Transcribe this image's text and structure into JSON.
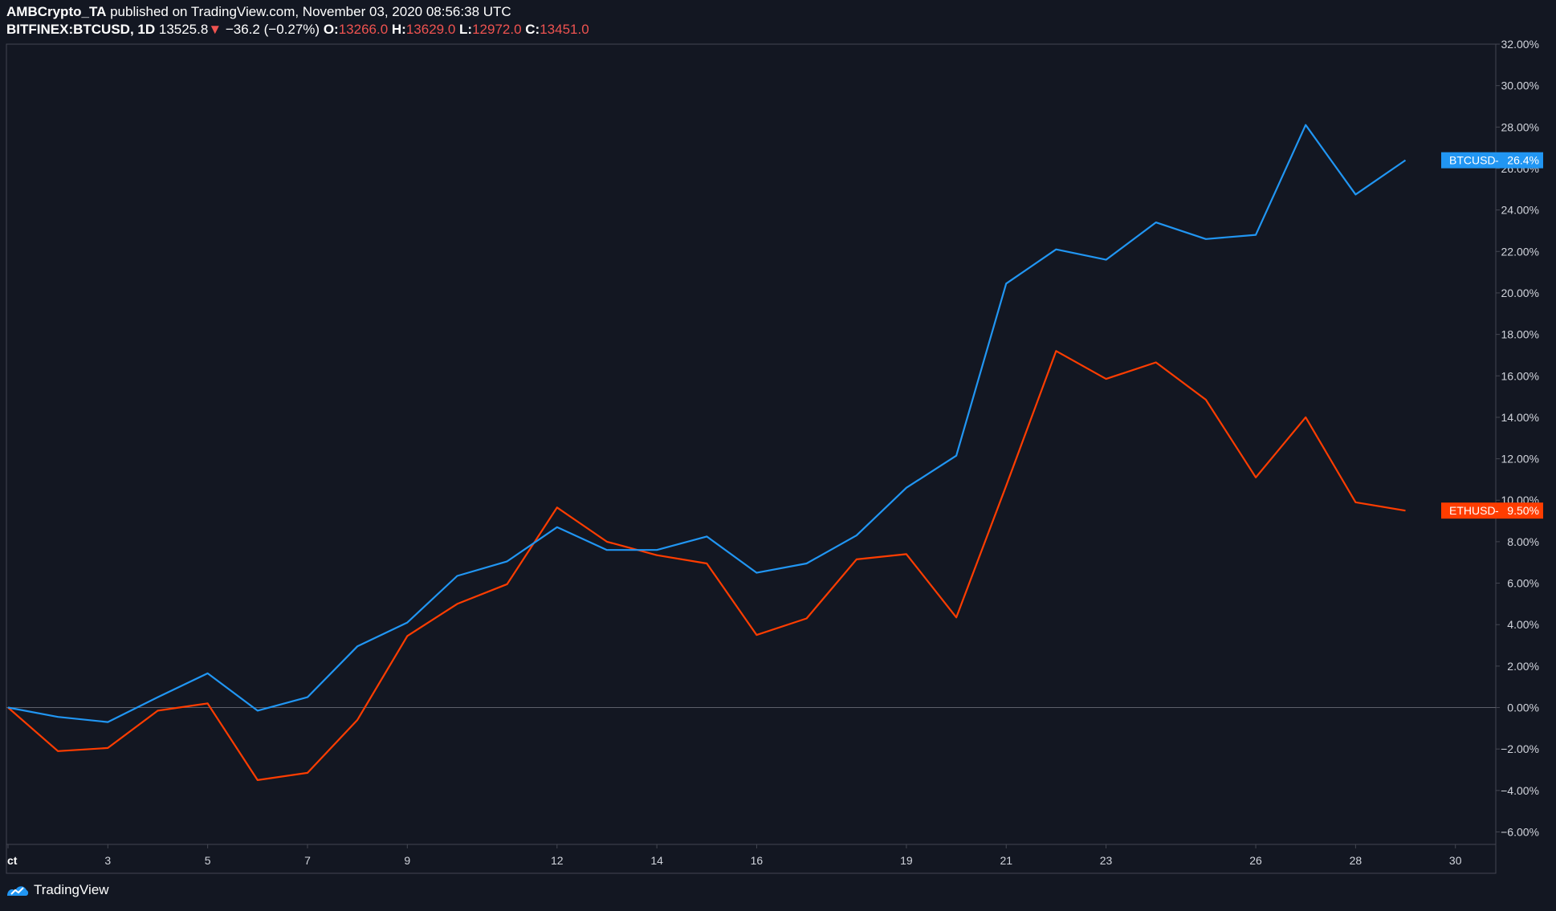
{
  "header": {
    "author": "AMBCrypto_TA",
    "published_text": " published on TradingView.com, November 03, 2020 08:56:38 UTC",
    "symbol": "BITFINEX:BTCUSD, 1D",
    "price": "13525.8",
    "change_arrow": "▼",
    "change": "−36.2 (−0.27%)",
    "open_label": "O:",
    "open": "13266.0",
    "high_label": "H:",
    "high": "13629.0",
    "low_label": "L:",
    "low": "12972.0",
    "close_label": "C:",
    "close": "13451.0"
  },
  "footer": {
    "brand": "TradingView",
    "logo_icon": "tradingview-logo-icon"
  },
  "colors": {
    "background": "#131722",
    "btc": "#2196f3",
    "eth": "#ff3d00",
    "grid": "#363a45",
    "axis_text": "#d1d4dc"
  },
  "chart_data": {
    "type": "line",
    "title": "",
    "xlabel": "",
    "ylabel": "",
    "x_range": [
      1,
      30.6
    ],
    "ylim": [
      -6.6,
      32.0
    ],
    "x_ticks": [
      {
        "x": 1,
        "label": "ct"
      },
      {
        "x": 3,
        "label": "3"
      },
      {
        "x": 5,
        "label": "5"
      },
      {
        "x": 7,
        "label": "7"
      },
      {
        "x": 9,
        "label": "9"
      },
      {
        "x": 12,
        "label": "12"
      },
      {
        "x": 14,
        "label": "14"
      },
      {
        "x": 16,
        "label": "16"
      },
      {
        "x": 19,
        "label": "19"
      },
      {
        "x": 21,
        "label": "21"
      },
      {
        "x": 23,
        "label": "23"
      },
      {
        "x": 26,
        "label": "26"
      },
      {
        "x": 28,
        "label": "28"
      },
      {
        "x": 30,
        "label": "30"
      }
    ],
    "y_ticks": [
      {
        "v": 32,
        "label": "32.00%"
      },
      {
        "v": 30,
        "label": "30.00%"
      },
      {
        "v": 28,
        "label": "28.00%"
      },
      {
        "v": 26,
        "label": "26.00%"
      },
      {
        "v": 24,
        "label": "24.00%"
      },
      {
        "v": 22,
        "label": "22.00%"
      },
      {
        "v": 20,
        "label": "20.00%"
      },
      {
        "v": 18,
        "label": "18.00%"
      },
      {
        "v": 16,
        "label": "16.00%"
      },
      {
        "v": 14,
        "label": "14.00%"
      },
      {
        "v": 12,
        "label": "12.00%"
      },
      {
        "v": 10,
        "label": "10.00%"
      },
      {
        "v": 8,
        "label": "8.00%"
      },
      {
        "v": 6,
        "label": "6.00%"
      },
      {
        "v": 4,
        "label": "4.00%"
      },
      {
        "v": 2,
        "label": "2.00%"
      },
      {
        "v": 0,
        "label": "0.00%"
      },
      {
        "v": -2,
        "label": "−2.00%"
      },
      {
        "v": -4,
        "label": "−4.00%"
      },
      {
        "v": -6,
        "label": "−6.00%"
      }
    ],
    "zero_line": 0,
    "grid": false,
    "x": [
      1,
      2,
      3,
      4,
      5,
      6,
      7,
      8,
      9,
      10,
      11,
      12,
      13,
      14,
      15,
      16,
      17,
      18,
      19,
      20,
      21,
      22,
      23,
      24,
      25,
      26,
      27,
      28,
      29
    ],
    "series": [
      {
        "name": "BTCUSD",
        "color": "#2196f3",
        "last_label": "26.4%",
        "last_value": 26.4,
        "values": [
          0,
          -0.45,
          -0.7,
          0.5,
          1.65,
          -0.15,
          0.5,
          2.95,
          4.1,
          6.35,
          7.05,
          8.7,
          7.6,
          7.6,
          8.25,
          6.5,
          6.95,
          8.3,
          10.6,
          12.15,
          20.45,
          22.1,
          21.6,
          23.4,
          22.6,
          22.8,
          28.1,
          24.75,
          26.4
        ]
      },
      {
        "name": "ETHUSD",
        "color": "#ff3d00",
        "last_label": "9.50%",
        "last_value": 9.5,
        "values": [
          0,
          -2.1,
          -1.95,
          -0.15,
          0.2,
          -3.5,
          -3.15,
          -0.6,
          3.45,
          5.0,
          5.95,
          9.65,
          8.0,
          7.35,
          6.95,
          3.5,
          4.3,
          7.15,
          7.4,
          4.35,
          10.7,
          17.2,
          15.85,
          16.65,
          14.85,
          11.1,
          14.0,
          9.9,
          9.5
        ]
      }
    ]
  }
}
